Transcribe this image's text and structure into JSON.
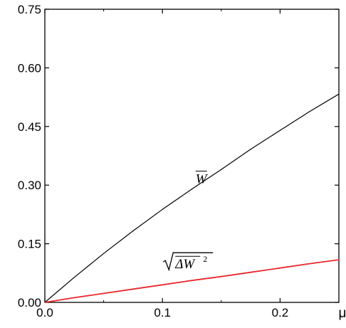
{
  "chart_data": {
    "type": "line",
    "title": "",
    "xlabel": "μ",
    "ylabel": "",
    "xlim": [
      0,
      0.25
    ],
    "ylim": [
      0,
      0.75
    ],
    "x_ticks": [
      0.0,
      0.1,
      0.2
    ],
    "x_tick_labels": [
      "0.0",
      "0.1",
      "0.2"
    ],
    "y_ticks": [
      0.0,
      0.15,
      0.3,
      0.45,
      0.6,
      0.75
    ],
    "y_tick_labels": [
      "0.00",
      "0.15",
      "0.30",
      "0.45",
      "0.60",
      "0.75"
    ],
    "grid": false,
    "legend": "none",
    "series": [
      {
        "color": "#000000",
        "x": [
          0.0,
          0.025,
          0.05,
          0.075,
          0.1,
          0.125,
          0.15,
          0.175,
          0.2,
          0.225,
          0.25
        ],
        "y": [
          0.0,
          0.064,
          0.125,
          0.183,
          0.238,
          0.29,
          0.34,
          0.392,
          0.44,
          0.488,
          0.533
        ]
      },
      {
        "color": "#e8282d",
        "x": [
          0.0,
          0.025,
          0.05,
          0.075,
          0.1,
          0.125,
          0.15,
          0.175,
          0.2,
          0.225,
          0.25
        ],
        "y": [
          0.0,
          0.012,
          0.023,
          0.034,
          0.045,
          0.056,
          0.066,
          0.077,
          0.088,
          0.099,
          0.109
        ]
      }
    ],
    "annotations": [
      {
        "text": "W",
        "decoration": "overline",
        "x": 0.133,
        "y": 0.305,
        "series": 0
      },
      {
        "text": "ΔW",
        "superscript": "2",
        "decoration": "sqrt-overline",
        "x": 0.12,
        "y": 0.087,
        "series": 1
      }
    ]
  }
}
